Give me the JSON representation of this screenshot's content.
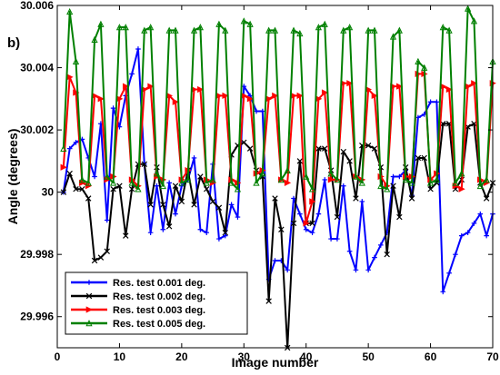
{
  "chart_data": {
    "type": "line",
    "panel_label": "b)",
    "xlabel": "Image number",
    "ylabel": "Angle (degrees)",
    "xlim": [
      0,
      70
    ],
    "ylim": [
      29.995,
      30.006
    ],
    "x_ticks": [
      0,
      10,
      20,
      30,
      40,
      50,
      60,
      70
    ],
    "x_tick_labels": [
      "0",
      "10",
      "20",
      "30",
      "40",
      "50",
      "60",
      "70"
    ],
    "y_ticks": [
      29.996,
      29.998,
      30.0,
      30.002,
      30.004,
      30.006
    ],
    "y_tick_labels": [
      "29.996",
      "29.998",
      "30",
      "30.002",
      "30.004",
      "30.006"
    ],
    "legend_position": "bottom-left",
    "x": [
      1,
      2,
      3,
      4,
      5,
      6,
      7,
      8,
      9,
      10,
      11,
      12,
      13,
      14,
      15,
      16,
      17,
      18,
      19,
      20,
      21,
      22,
      23,
      24,
      25,
      26,
      27,
      28,
      29,
      30,
      31,
      32,
      33,
      34,
      35,
      36,
      37,
      38,
      39,
      40,
      41,
      42,
      43,
      44,
      45,
      46,
      47,
      48,
      49,
      50,
      51,
      52,
      53,
      54,
      55,
      56,
      57,
      58,
      59,
      60,
      61,
      62,
      63,
      64,
      65,
      66,
      67,
      68,
      69,
      70
    ],
    "series": [
      {
        "name": "Res. test 0.001 deg.",
        "color": "#0000ff",
        "marker": "plus",
        "values": [
          30.0,
          30.0014,
          30.0016,
          30.0017,
          30.0011,
          30.0005,
          30.0022,
          29.9991,
          30.0027,
          30.0021,
          30.0031,
          30.0038,
          30.0046,
          30.0009,
          29.9987,
          30.0002,
          29.9988,
          30.0003,
          29.9993,
          30.0002,
          30.0004,
          30.0011,
          29.9988,
          29.9987,
          30.0009,
          29.9985,
          29.9986,
          29.9996,
          29.9992,
          30.0034,
          30.0031,
          30.0026,
          30.0026,
          29.9972,
          29.9978,
          29.9978,
          29.9975,
          29.9998,
          29.9993,
          29.9988,
          29.9987,
          29.9993,
          30.0004,
          29.9985,
          29.9985,
          30.0002,
          29.9981,
          29.9975,
          29.9997,
          29.9975,
          29.9979,
          29.9983,
          29.9987,
          30.0005,
          30.0005,
          30.0007,
          29.9999,
          30.0024,
          30.0025,
          30.0029,
          30.0029,
          29.9968,
          29.9974,
          29.998,
          29.9986,
          29.9987,
          29.999,
          29.9993,
          29.9986,
          29.9993
        ]
      },
      {
        "name": "Res. test 0.002 deg.",
        "color": "#000000",
        "marker": "x",
        "values": [
          30.0,
          30.0006,
          30.0001,
          30.0001,
          29.9998,
          29.9978,
          29.9979,
          29.9981,
          30.0001,
          30.0002,
          29.9986,
          30.0001,
          30.0009,
          30.0009,
          29.9996,
          30.0008,
          29.9996,
          29.9989,
          30.0002,
          29.9997,
          30.0007,
          29.9996,
          30.0005,
          30.0001,
          29.9997,
          29.9995,
          29.9987,
          30.0012,
          30.0015,
          30.0016,
          30.0014,
          30.0007,
          30.0005,
          29.9965,
          29.9998,
          29.9988,
          29.995,
          29.999,
          30.001,
          29.999,
          29.999,
          30.0014,
          30.0014,
          30.0007,
          29.9992,
          30.0013,
          30.001,
          29.9998,
          30.0015,
          30.0015,
          30.0014,
          30.0008,
          29.998,
          30.0002,
          29.9992,
          30.0008,
          29.9998,
          30.0011,
          30.0011,
          30.0001,
          30.0003,
          30.0022,
          30.0022,
          30.0001,
          30.0004,
          30.0021,
          30.0022,
          30.0003,
          29.9998,
          30.0003
        ]
      },
      {
        "name": "Res. test 0.003 deg.",
        "color": "#ff0000",
        "marker": "triangle-right",
        "values": [
          30.0008,
          30.0037,
          30.0032,
          30.0003,
          30.0002,
          30.0031,
          30.003,
          30.0004,
          30.0005,
          30.003,
          30.0034,
          30.0004,
          30.0002,
          30.0033,
          30.0034,
          30.0005,
          30.0004,
          30.0031,
          30.0029,
          30.0004,
          30.0007,
          30.0033,
          30.0033,
          30.0004,
          30.0003,
          30.0031,
          30.0031,
          30.0004,
          30.0003,
          30.0031,
          30.003,
          30.0006,
          30.0007,
          30.003,
          30.0031,
          30.0004,
          30.0003,
          30.0031,
          30.0031,
          29.999,
          29.9997,
          30.003,
          30.0032,
          30.0004,
          30.0004,
          30.0035,
          30.0035,
          30.0005,
          30.0004,
          30.0033,
          30.0031,
          30.0005,
          30.0002,
          30.0034,
          30.0034,
          30.0005,
          30.0005,
          30.0038,
          30.0038,
          30.0004,
          30.0006,
          30.0034,
          30.0033,
          30.0002,
          30.0001,
          30.0034,
          30.0035,
          30.0004,
          30.0003,
          30.0035
        ]
      },
      {
        "name": "Res. test 0.005 deg.",
        "color": "#008000",
        "marker": "triangle-up",
        "values": [
          30.0014,
          30.0058,
          30.0042,
          30.0004,
          30.0003,
          30.0049,
          30.0054,
          30.0005,
          30.0003,
          30.0053,
          30.0053,
          30.0003,
          30.0001,
          30.0052,
          30.0053,
          30.0006,
          30.0002,
          30.0052,
          30.0052,
          30.0003,
          30.0004,
          30.0052,
          30.0053,
          30.0003,
          30.0004,
          30.0054,
          30.0052,
          30.0003,
          30.0001,
          30.0055,
          30.0054,
          30.0003,
          30.0006,
          30.0052,
          30.0052,
          30.0004,
          30.0007,
          30.0052,
          30.0051,
          30.0005,
          30.0001,
          30.0053,
          30.0054,
          30.0006,
          30.0004,
          30.0052,
          30.0053,
          30.0005,
          30.0003,
          30.0052,
          30.0052,
          30.0002,
          30.0001,
          30.005,
          30.0052,
          30.0004,
          30.0003,
          30.0042,
          30.004,
          30.0003,
          30.0004,
          30.0053,
          30.0052,
          30.0003,
          30.0006,
          30.0059,
          30.0055,
          30.0002,
          30.0004,
          30.0042
        ]
      }
    ]
  }
}
